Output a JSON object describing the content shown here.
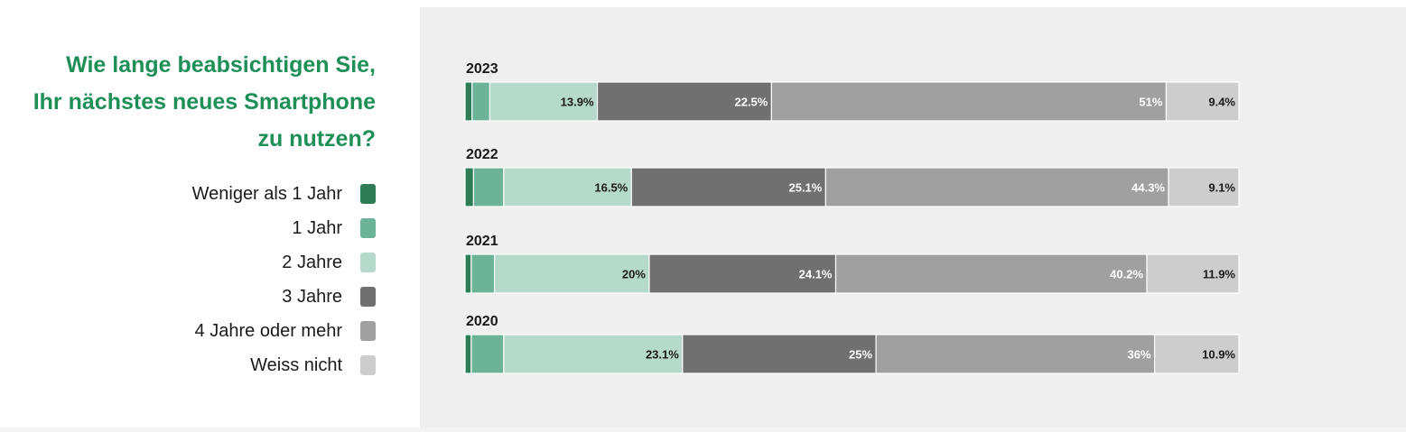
{
  "title": "Wie lange beabsichtigen Sie,\nIhr nächstes neues Smartphone\nzu nutzen?",
  "legend": [
    {
      "label": "Weniger als 1 Jahr",
      "color": "#2e7d57"
    },
    {
      "label": "1 Jahr",
      "color": "#6db397"
    },
    {
      "label": "2 Jahre",
      "color": "#b5d9cb"
    },
    {
      "label": "3 Jahre",
      "color": "#707070"
    },
    {
      "label": "4 Jahre oder mehr",
      "color": "#a0a0a0"
    },
    {
      "label": "Weiss nicht",
      "color": "#cdcdcd"
    }
  ],
  "chart_data": {
    "type": "bar",
    "orientation": "horizontal",
    "stacked": true,
    "categories": [
      "2023",
      "2022",
      "2021",
      "2020"
    ],
    "series": [
      {
        "name": "Weniger als 1 Jahr",
        "values": [
          0.9,
          1.1,
          0.8,
          0.8
        ],
        "labels": [
          "",
          "",
          "",
          ""
        ]
      },
      {
        "name": "1 Jahr",
        "values": [
          2.3,
          3.9,
          3.0,
          4.2
        ],
        "labels": [
          "",
          "",
          "",
          ""
        ]
      },
      {
        "name": "2 Jahre",
        "values": [
          13.9,
          16.5,
          20,
          23.1
        ],
        "labels": [
          "13.9%",
          "16.5%",
          "20%",
          "23.1%"
        ]
      },
      {
        "name": "3 Jahre",
        "values": [
          22.5,
          25.1,
          24.1,
          25
        ],
        "labels": [
          "22.5%",
          "25.1%",
          "24.1%",
          "25%"
        ]
      },
      {
        "name": "4 Jahre oder mehr",
        "values": [
          51,
          44.3,
          40.2,
          36
        ],
        "labels": [
          "51%",
          "44.3%",
          "40.2%",
          "36%"
        ]
      },
      {
        "name": "Weiss nicht",
        "values": [
          9.4,
          9.1,
          11.9,
          10.9
        ],
        "labels": [
          "9.4%",
          "9.1%",
          "11.9%",
          "10.9%"
        ]
      }
    ],
    "label_colors": [
      "#ffffff",
      "#ffffff",
      "#1a1a1a",
      "#ffffff",
      "#ffffff",
      "#1a1a1a"
    ],
    "xlim": [
      0,
      100
    ],
    "grid": false,
    "legend_position": "left"
  }
}
